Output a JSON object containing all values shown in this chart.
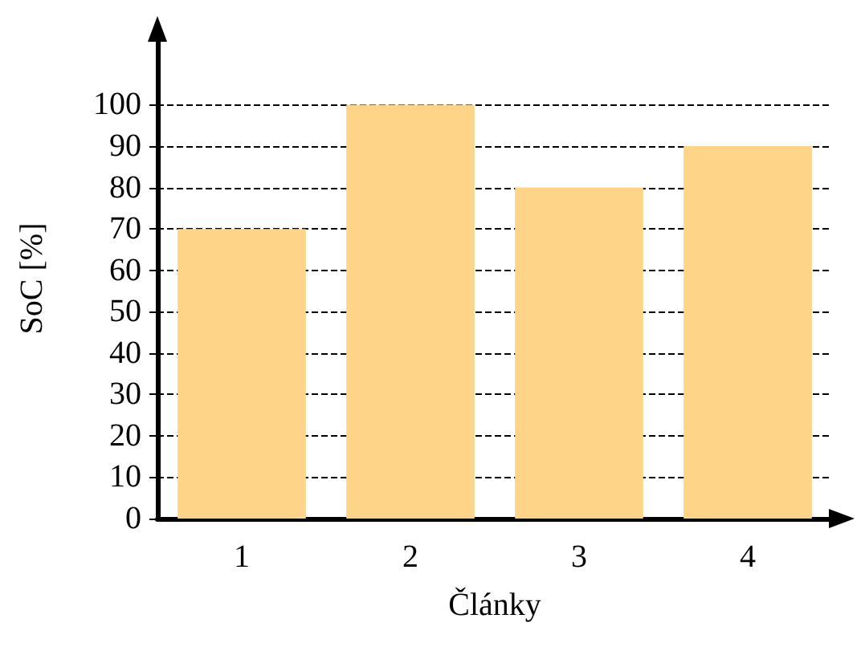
{
  "chart_data": {
    "type": "bar",
    "xlabel": "Články",
    "ylabel": "SoC [%]",
    "categories": [
      "1",
      "2",
      "3",
      "4"
    ],
    "values": [
      70,
      100,
      80,
      90
    ],
    "color": "#fdd488",
    "ylim": [
      0,
      116
    ],
    "yticks": [
      0,
      10,
      20,
      30,
      40,
      50,
      60,
      70,
      80,
      90,
      100
    ],
    "grid": "y"
  }
}
